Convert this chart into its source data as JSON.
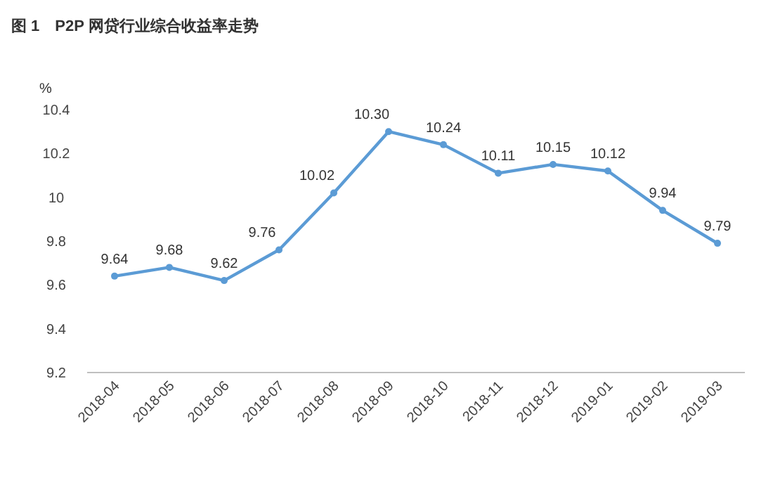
{
  "chart_data": {
    "type": "line",
    "title": "图 1　P2P 网贷行业综合收益率走势",
    "ylabel": "%",
    "categories": [
      "2018-04",
      "2018-05",
      "2018-06",
      "2018-07",
      "2018-08",
      "2018-09",
      "2018-10",
      "2018-11",
      "2018-12",
      "2019-01",
      "2019-02",
      "2019-03"
    ],
    "series": [
      {
        "color": "#5b9bd5",
        "values": [
          9.64,
          9.68,
          9.62,
          9.76,
          10.02,
          10.3,
          10.24,
          10.11,
          10.15,
          10.12,
          9.94,
          9.79
        ],
        "value_labels": [
          "9.64",
          "9.68",
          "9.62",
          "9.76",
          "10.02",
          "10.30",
          "10.24",
          "10.11",
          "10.15",
          "10.12",
          "9.94",
          "9.79"
        ]
      }
    ],
    "ylim": [
      9.2,
      10.4
    ],
    "yticks": [
      9.2,
      9.4,
      9.6,
      9.8,
      10,
      10.2,
      10.4
    ],
    "marker": "circle",
    "line_style": "solid"
  }
}
